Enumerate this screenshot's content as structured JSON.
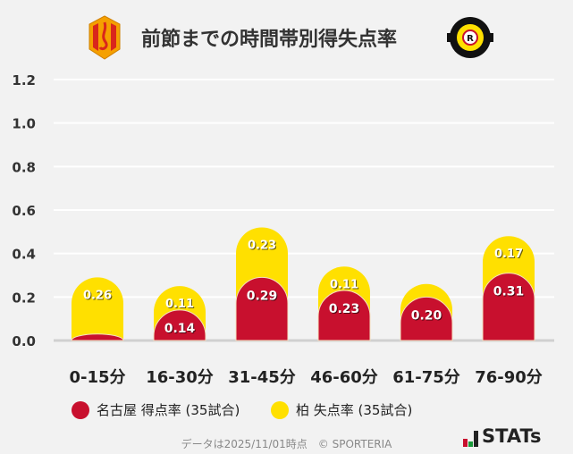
{
  "title": "前節までの時間帯別得失点率",
  "chart_data": {
    "type": "bar",
    "stacked": true,
    "categories": [
      "0-15分",
      "16-30分",
      "31-45分",
      "46-60分",
      "61-75分",
      "76-90分"
    ],
    "series": [
      {
        "name": "名古屋 得点率 (35試合)",
        "color": "#c8102e",
        "values": [
          0.03,
          0.14,
          0.29,
          0.23,
          0.2,
          0.31
        ],
        "labels": [
          "",
          "0.14",
          "0.29",
          "0.23",
          "0.20",
          "0.31"
        ]
      },
      {
        "name": "柏 失点率 (35試合)",
        "color": "#ffe000",
        "values": [
          0.26,
          0.11,
          0.23,
          0.11,
          0.06,
          0.17
        ],
        "labels": [
          "0.26",
          "0.11",
          "0.23",
          "0.11",
          "",
          "0.17"
        ]
      }
    ],
    "yticks": [
      "0.0",
      "0.2",
      "0.4",
      "0.6",
      "0.8",
      "1.0",
      "1.2"
    ],
    "ylim": [
      0,
      1.2
    ],
    "grid": true,
    "legend": "bottom"
  },
  "legend": {
    "home": "名古屋 得点率 (35試合)",
    "away": "柏 失点率 (35試合)"
  },
  "footer": "データは2025/11/01時点　© SPORTERIA",
  "brand": "STATs",
  "logos": {
    "home": "Nagoya Grampus crest",
    "away": "KASHIWA REYSOL"
  }
}
